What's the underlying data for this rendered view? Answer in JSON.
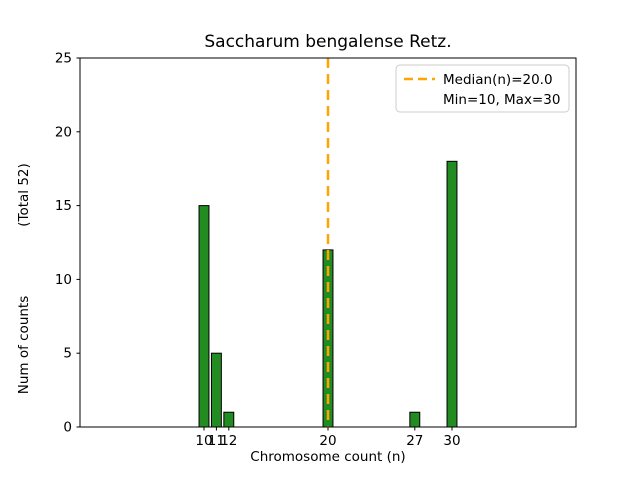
{
  "figure": {
    "background": "#ffffff"
  },
  "chart_data": {
    "type": "bar",
    "title": "Saccharum bengalense Retz.",
    "xlabel": "Chromosome count (n)",
    "ylabel": "Num of counts    (Total 52)",
    "ylabel_parts": [
      "Num of counts",
      "(Total 52)"
    ],
    "x": [
      10,
      11,
      12,
      20,
      27,
      30
    ],
    "values": [
      15,
      5,
      1,
      12,
      1,
      18
    ],
    "total_counts": 52,
    "bar_width": 0.8,
    "bar_color": "#228B22",
    "bar_edge_color": "#000000",
    "xlim": [
      0,
      40
    ],
    "ylim": [
      0,
      25
    ],
    "xticks": [
      10,
      11,
      12,
      20,
      27,
      30
    ],
    "yticks": [
      0,
      5,
      10,
      15,
      20,
      25
    ],
    "grid": false,
    "median_line": {
      "x": 20.0,
      "color": "#FFA500",
      "style": "dashed"
    },
    "legend": {
      "position": "upper right",
      "entries": [
        {
          "label": "Median(n)=20.0",
          "handle": "dashed-line",
          "color": "#FFA500"
        },
        {
          "label": "Min=10, Max=30",
          "handle": "none"
        }
      ]
    }
  }
}
